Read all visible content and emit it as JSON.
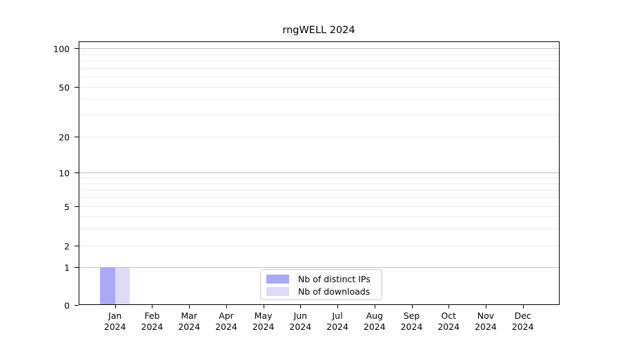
{
  "chart_data": {
    "type": "bar",
    "title": "rngWELL 2024",
    "categories": [
      "Jan 2024",
      "Feb 2024",
      "Mar 2024",
      "Apr 2024",
      "May 2024",
      "Jun 2024",
      "Jul 2024",
      "Aug 2024",
      "Sep 2024",
      "Oct 2024",
      "Nov 2024",
      "Dec 2024"
    ],
    "series": [
      {
        "name": "Nb of distinct IPs",
        "color": "#a9a9f7",
        "values": [
          1,
          0,
          0,
          0,
          0,
          0,
          0,
          0,
          0,
          0,
          0,
          0
        ]
      },
      {
        "name": "Nb of downloads",
        "color": "#dcdcf8",
        "values": [
          1,
          0,
          0,
          0,
          0,
          0,
          0,
          0,
          0,
          0,
          0,
          0
        ]
      }
    ],
    "xlabel": "",
    "ylabel": "",
    "yscale": "symlog",
    "ylim": [
      0,
      113
    ],
    "ytick_values": [
      0,
      1,
      2,
      5,
      10,
      20,
      50,
      100
    ],
    "ytick_labels": [
      "0",
      "1",
      "2",
      "5",
      "10",
      "20",
      "50",
      "100"
    ],
    "y_decade_ticks": [
      1,
      10,
      100
    ],
    "y_minor_ticks": [
      3,
      4,
      6,
      7,
      8,
      9,
      30,
      40,
      60,
      70,
      80,
      90
    ],
    "grid": "horizontal only, decades darker, others faint",
    "legend_position": "lower center inside plot",
    "colors": {
      "grid_major": "#c3c3c3",
      "grid_light": "#e9e9e9",
      "axis": "#000000",
      "background": "#ffffff"
    }
  }
}
